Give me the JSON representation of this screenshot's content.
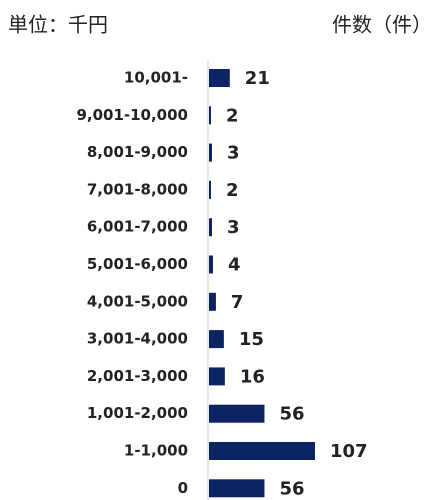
{
  "chart_data": {
    "type": "bar",
    "orientation": "horizontal",
    "unit_label": "単位：千円",
    "value_axis_title": "件数（件）",
    "categories": [
      "10,001-",
      "9,001-10,000",
      "8,001-9,000",
      "7,001-8,000",
      "6,001-7,000",
      "5,001-6,000",
      "4,001-5,000",
      "3,001-4,000",
      "2,001-3,000",
      "1,001-2,000",
      "1-1,000",
      "0"
    ],
    "values": [
      21,
      2,
      3,
      2,
      3,
      4,
      7,
      15,
      16,
      56,
      107,
      56
    ],
    "color": "#0c2461"
  }
}
